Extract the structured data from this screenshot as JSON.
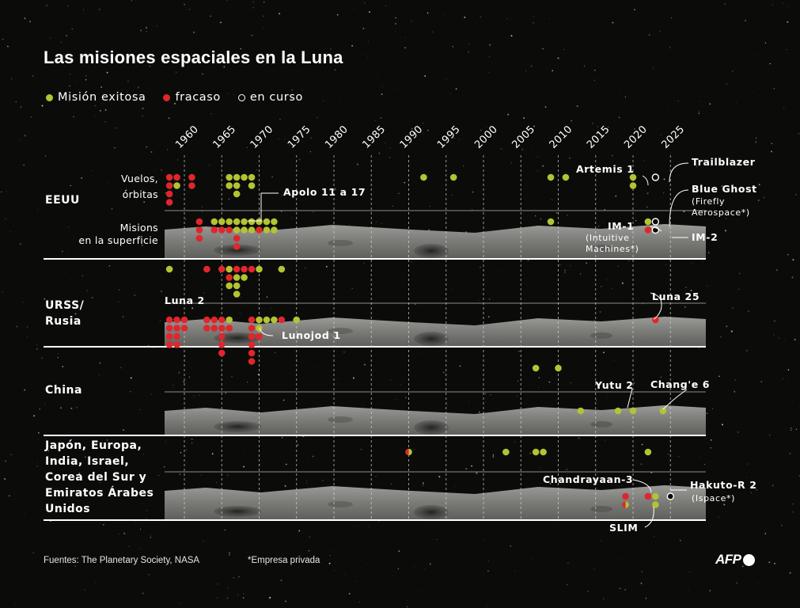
{
  "title": "Las misiones espaciales en la Luna",
  "legend": [
    {
      "label": "Misión exitosa",
      "status": "success",
      "color": "#b4c332"
    },
    {
      "label": "fracaso",
      "status": "failure",
      "color": "#e0262c"
    },
    {
      "label": "en curso",
      "status": "ongoing",
      "color": "#ffffff"
    }
  ],
  "footer": {
    "sources": "Fuentes: The Planetary Society, NASA",
    "note": "*Empresa privada",
    "logo": "AFP"
  },
  "chart_data": {
    "type": "scatter",
    "title": "Las misiones espaciales en la Luna",
    "x_ticks": [
      "1960",
      "1965",
      "1970",
      "1975",
      "1980",
      "1985",
      "1990",
      "1995",
      "2000",
      "2005",
      "2010",
      "2015",
      "2020",
      "2025"
    ],
    "xlim": [
      1957,
      2027
    ],
    "groups": [
      {
        "name_lines": [
          "EEUU"
        ],
        "rows": [
          {
            "label_lines": [
              "Vuelos,",
              "órbitas"
            ],
            "missions": [
              {
                "year": 1958,
                "stack": 0,
                "status": "failure"
              },
              {
                "year": 1958,
                "stack": 1,
                "status": "failure"
              },
              {
                "year": 1958,
                "stack": 2,
                "status": "failure"
              },
              {
                "year": 1958,
                "stack": 3,
                "status": "failure"
              },
              {
                "year": 1959,
                "stack": 0,
                "status": "failure"
              },
              {
                "year": 1959,
                "stack": 1,
                "status": "success"
              },
              {
                "year": 1961,
                "stack": 0,
                "status": "failure"
              },
              {
                "year": 1961,
                "stack": 1,
                "status": "failure"
              },
              {
                "year": 1966,
                "stack": 0,
                "status": "success"
              },
              {
                "year": 1966,
                "stack": 1,
                "status": "success"
              },
              {
                "year": 1967,
                "stack": 0,
                "status": "success"
              },
              {
                "year": 1967,
                "stack": 1,
                "status": "success"
              },
              {
                "year": 1967,
                "stack": 2,
                "status": "success"
              },
              {
                "year": 1968,
                "stack": 0,
                "status": "success"
              },
              {
                "year": 1969,
                "stack": 0,
                "status": "success"
              },
              {
                "year": 1969,
                "stack": 1,
                "status": "success"
              },
              {
                "year": 1992,
                "stack": 0,
                "status": "success"
              },
              {
                "year": 1996,
                "stack": 0,
                "status": "success"
              },
              {
                "year": 2009,
                "stack": 0,
                "status": "success"
              },
              {
                "year": 2011,
                "stack": 0,
                "status": "success"
              },
              {
                "year": 2020,
                "stack": 0,
                "status": "success"
              },
              {
                "year": 2020,
                "stack": 1,
                "status": "success"
              },
              {
                "year": 2023,
                "stack": 0,
                "status": "ongoing"
              }
            ]
          },
          {
            "label_lines": [
              "Misions",
              "en la superficie"
            ],
            "missions": [
              {
                "year": 1962,
                "stack": 0,
                "status": "failure"
              },
              {
                "year": 1962,
                "stack": 1,
                "status": "failure"
              },
              {
                "year": 1962,
                "stack": 2,
                "status": "failure"
              },
              {
                "year": 1964,
                "stack": 0,
                "status": "success"
              },
              {
                "year": 1964,
                "stack": 1,
                "status": "failure"
              },
              {
                "year": 1965,
                "stack": 0,
                "status": "success"
              },
              {
                "year": 1965,
                "stack": 1,
                "status": "failure"
              },
              {
                "year": 1966,
                "stack": 0,
                "status": "success"
              },
              {
                "year": 1966,
                "stack": 1,
                "status": "failure"
              },
              {
                "year": 1967,
                "stack": 0,
                "status": "success"
              },
              {
                "year": 1967,
                "stack": 1,
                "status": "success"
              },
              {
                "year": 1967,
                "stack": 2,
                "status": "failure"
              },
              {
                "year": 1967,
                "stack": 3,
                "status": "failure"
              },
              {
                "year": 1968,
                "stack": 0,
                "status": "success"
              },
              {
                "year": 1968,
                "stack": 1,
                "status": "success"
              },
              {
                "year": 1969,
                "stack": 0,
                "status": "success"
              },
              {
                "year": 1969,
                "stack": 1,
                "status": "success"
              },
              {
                "year": 1970,
                "stack": 0,
                "status": "success"
              },
              {
                "year": 1970,
                "stack": 1,
                "status": "failure"
              },
              {
                "year": 1971,
                "stack": 0,
                "status": "success"
              },
              {
                "year": 1971,
                "stack": 1,
                "status": "success"
              },
              {
                "year": 1972,
                "stack": 0,
                "status": "success"
              },
              {
                "year": 1972,
                "stack": 1,
                "status": "success"
              },
              {
                "year": 2009,
                "stack": 0,
                "status": "success"
              },
              {
                "year": 2022,
                "stack": 0,
                "status": "success"
              },
              {
                "year": 2022,
                "stack": 1,
                "status": "failure"
              },
              {
                "year": 2023,
                "stack": 0,
                "status": "ongoing"
              },
              {
                "year": 2023,
                "stack": 1,
                "status": "ongoing"
              }
            ]
          }
        ]
      },
      {
        "name_lines": [
          "URSS/",
          "Rusia"
        ],
        "rows": [
          {
            "label_lines": [],
            "missions": [
              {
                "year": 1958,
                "stack": 0,
                "status": "success"
              },
              {
                "year": 1963,
                "stack": 0,
                "status": "failure"
              },
              {
                "year": 1965,
                "stack": 0,
                "status": "failure"
              },
              {
                "year": 1966,
                "stack": 0,
                "status": "success"
              },
              {
                "year": 1966,
                "stack": 1,
                "status": "failure"
              },
              {
                "year": 1966,
                "stack": 2,
                "status": "success"
              },
              {
                "year": 1967,
                "stack": 0,
                "status": "failure"
              },
              {
                "year": 1967,
                "stack": 1,
                "status": "success"
              },
              {
                "year": 1967,
                "stack": 2,
                "status": "success"
              },
              {
                "year": 1967,
                "stack": 3,
                "status": "success"
              },
              {
                "year": 1968,
                "stack": 0,
                "status": "failure"
              },
              {
                "year": 1968,
                "stack": 1,
                "status": "success"
              },
              {
                "year": 1969,
                "stack": 0,
                "status": "failure"
              },
              {
                "year": 1970,
                "stack": 0,
                "status": "success"
              },
              {
                "year": 1973,
                "stack": 0,
                "status": "success"
              }
            ]
          },
          {
            "label_lines": [],
            "missions": [
              {
                "year": 1958,
                "stack": 0,
                "status": "failure"
              },
              {
                "year": 1958,
                "stack": 1,
                "status": "failure"
              },
              {
                "year": 1958,
                "stack": 2,
                "status": "failure"
              },
              {
                "year": 1958,
                "stack": 3,
                "status": "failure"
              },
              {
                "year": 1959,
                "stack": 0,
                "status": "failure"
              },
              {
                "year": 1959,
                "stack": 1,
                "status": "failure"
              },
              {
                "year": 1959,
                "stack": 2,
                "status": "failure"
              },
              {
                "year": 1959,
                "stack": 3,
                "status": "failure"
              },
              {
                "year": 1960,
                "stack": 0,
                "status": "failure"
              },
              {
                "year": 1960,
                "stack": 1,
                "status": "failure"
              },
              {
                "year": 1963,
                "stack": 0,
                "status": "failure"
              },
              {
                "year": 1963,
                "stack": 1,
                "status": "failure"
              },
              {
                "year": 1964,
                "stack": 0,
                "status": "failure"
              },
              {
                "year": 1964,
                "stack": 1,
                "status": "failure"
              },
              {
                "year": 1965,
                "stack": 0,
                "status": "failure"
              },
              {
                "year": 1965,
                "stack": 1,
                "status": "failure"
              },
              {
                "year": 1965,
                "stack": 2,
                "status": "failure"
              },
              {
                "year": 1965,
                "stack": 3,
                "status": "failure"
              },
              {
                "year": 1965,
                "stack": 4,
                "status": "failure"
              },
              {
                "year": 1966,
                "stack": 0,
                "status": "success"
              },
              {
                "year": 1966,
                "stack": 1,
                "status": "failure"
              },
              {
                "year": 1969,
                "stack": 0,
                "status": "failure"
              },
              {
                "year": 1969,
                "stack": 1,
                "status": "failure"
              },
              {
                "year": 1969,
                "stack": 2,
                "status": "failure"
              },
              {
                "year": 1969,
                "stack": 3,
                "status": "failure"
              },
              {
                "year": 1969,
                "stack": 4,
                "status": "failure"
              },
              {
                "year": 1969,
                "stack": 5,
                "status": "failure"
              },
              {
                "year": 1970,
                "stack": 0,
                "status": "success"
              },
              {
                "year": 1970,
                "stack": 1,
                "status": "success"
              },
              {
                "year": 1970,
                "stack": 2,
                "status": "failure"
              },
              {
                "year": 1971,
                "stack": 0,
                "status": "success"
              },
              {
                "year": 1972,
                "stack": 0,
                "status": "success"
              },
              {
                "year": 1973,
                "stack": 0,
                "status": "failure"
              },
              {
                "year": 1975,
                "stack": 0,
                "status": "success"
              },
              {
                "year": 2023,
                "stack": 0,
                "status": "failure"
              }
            ]
          }
        ]
      },
      {
        "name_lines": [
          "China"
        ],
        "rows": [
          {
            "label_lines": [],
            "missions": [
              {
                "year": 2007,
                "stack": 0,
                "status": "success"
              },
              {
                "year": 2010,
                "stack": 0,
                "status": "success"
              }
            ]
          },
          {
            "label_lines": [],
            "missions": [
              {
                "year": 2013,
                "stack": 0,
                "status": "success"
              },
              {
                "year": 2018,
                "stack": 0,
                "status": "success"
              },
              {
                "year": 2020,
                "stack": 0,
                "status": "success"
              },
              {
                "year": 2024,
                "stack": 0,
                "status": "success"
              }
            ]
          }
        ]
      },
      {
        "name_lines": [
          "Japón, Europa,",
          "India, Israel,",
          "Corea del Sur y",
          "Emiratos Árabes",
          "Unidos"
        ],
        "rows": [
          {
            "label_lines": [],
            "missions": [
              {
                "year": 1990,
                "stack": 0,
                "status": "mixed"
              },
              {
                "year": 2003,
                "stack": 0,
                "status": "success"
              },
              {
                "year": 2007,
                "stack": 0,
                "status": "success"
              },
              {
                "year": 2008,
                "stack": 0,
                "status": "success"
              },
              {
                "year": 2022,
                "stack": 0,
                "status": "success"
              }
            ]
          },
          {
            "label_lines": [],
            "missions": [
              {
                "year": 2019,
                "stack": 0,
                "status": "failure"
              },
              {
                "year": 2019,
                "stack": 1,
                "status": "mixed"
              },
              {
                "year": 2022,
                "stack": 0,
                "status": "failure"
              },
              {
                "year": 2023,
                "stack": 0,
                "status": "success"
              },
              {
                "year": 2023,
                "stack": 1,
                "status": "success"
              },
              {
                "year": 2025,
                "stack": 0,
                "status": "ongoing"
              }
            ]
          }
        ]
      }
    ],
    "annotations": [
      {
        "group": 0,
        "lines": [
          "Apolo 11 a 17"
        ]
      },
      {
        "group": 0,
        "lines": [
          "Artemis 1"
        ]
      },
      {
        "group": 0,
        "lines": [
          "Trailblazer"
        ]
      },
      {
        "group": 0,
        "lines": [
          "Blue Ghost"
        ]
      },
      {
        "group": 0,
        "lines": [
          "(Firefly",
          "Aerospace*)"
        ]
      },
      {
        "group": 0,
        "lines": [
          "IM-1"
        ]
      },
      {
        "group": 0,
        "lines": [
          "(Intuitive",
          "Machines*)"
        ]
      },
      {
        "group": 0,
        "lines": [
          "IM-2"
        ]
      },
      {
        "group": 1,
        "lines": [
          "Luna 2"
        ]
      },
      {
        "group": 1,
        "lines": [
          "Luna 25"
        ]
      },
      {
        "group": 1,
        "lines": [
          "Lunojod 1"
        ]
      },
      {
        "group": 2,
        "lines": [
          "Yutu 2"
        ]
      },
      {
        "group": 2,
        "lines": [
          "Chang'e 6"
        ]
      },
      {
        "group": 3,
        "lines": [
          "Chandrayaan-3"
        ]
      },
      {
        "group": 3,
        "lines": [
          "Hakuto-R 2"
        ]
      },
      {
        "group": 3,
        "lines": [
          "(Ispace*)"
        ]
      },
      {
        "group": 3,
        "lines": [
          "SLIM"
        ]
      }
    ]
  }
}
